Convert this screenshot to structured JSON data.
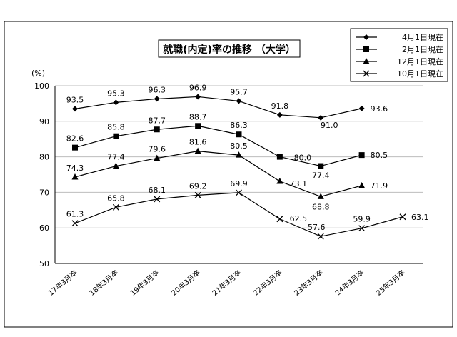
{
  "chart_data": {
    "type": "line",
    "title": "就職(内定)率の推移 （大学）",
    "ylabel": "(%)",
    "xlabel": "",
    "ylim": [
      50,
      100
    ],
    "yticks": [
      50,
      60,
      70,
      80,
      90,
      100
    ],
    "categories": [
      "17年3月卒",
      "18年3月卒",
      "19年3月卒",
      "20年3月卒",
      "21年3月卒",
      "22年3月卒",
      "23年3月卒",
      "24年3月卒",
      "25年3月卒"
    ],
    "grid": "horizontal",
    "legend_position": "top-right",
    "series": [
      {
        "name": "4月1日現在",
        "marker": "diamond",
        "values": [
          93.5,
          95.3,
          96.3,
          96.9,
          95.7,
          91.8,
          91.0,
          93.6,
          null
        ]
      },
      {
        "name": "2月1日現在",
        "marker": "square",
        "values": [
          82.6,
          85.8,
          87.7,
          88.7,
          86.3,
          80.0,
          77.4,
          80.5,
          null
        ]
      },
      {
        "name": "12月1日現在",
        "marker": "triangle",
        "values": [
          74.3,
          77.4,
          79.6,
          81.6,
          80.5,
          73.1,
          68.8,
          71.9,
          null
        ]
      },
      {
        "name": "10月1日現在",
        "marker": "cross",
        "values": [
          61.3,
          65.8,
          68.1,
          69.2,
          69.9,
          62.5,
          57.6,
          59.9,
          63.1
        ]
      }
    ]
  }
}
